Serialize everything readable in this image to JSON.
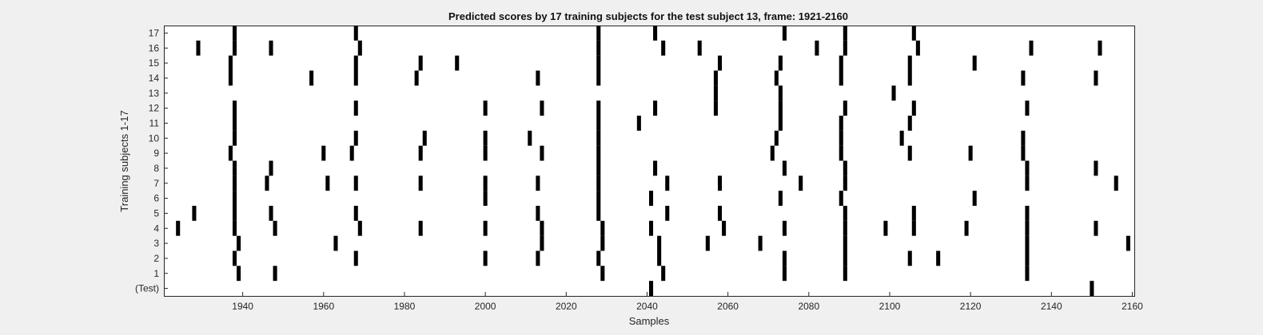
{
  "chart_data": {
    "type": "heatmap",
    "title": "Predicted scores by 17 training subjects for the test subject 13, frame: 1921-2160",
    "xlabel": "Samples",
    "ylabel": "Training subjects 1-17",
    "xlim": [
      1921,
      2160
    ],
    "xticks": [
      1940,
      1960,
      1980,
      2000,
      2020,
      2040,
      2060,
      2080,
      2100,
      2120,
      2140,
      2160
    ],
    "rows": [
      "(Test)",
      "1",
      "2",
      "3",
      "4",
      "5",
      "6",
      "7",
      "8",
      "9",
      "10",
      "11",
      "12",
      "13",
      "14",
      "15",
      "16",
      "17"
    ],
    "marks": {
      "(Test)": [
        2041,
        2150
      ],
      "1": [
        1939,
        1948,
        2029,
        2044,
        2074,
        2089,
        2134
      ],
      "2": [
        1938,
        1968,
        2000,
        2013,
        2028,
        2043,
        2074,
        2089,
        2105,
        2112,
        2134
      ],
      "3": [
        1939,
        1963,
        2014,
        2029,
        2043,
        2055,
        2068,
        2089,
        2134,
        2159
      ],
      "4": [
        1924,
        1938,
        1948,
        1969,
        1984,
        2000,
        2014,
        2029,
        2041,
        2059,
        2074,
        2089,
        2099,
        2106,
        2119,
        2134,
        2151
      ],
      "5": [
        1928,
        1938,
        1947,
        1968,
        2013,
        2028,
        2045,
        2058,
        2089,
        2106,
        2134
      ],
      "6": [
        1938,
        2000,
        2028,
        2041,
        2073,
        2088,
        2121
      ],
      "7": [
        1938,
        1946,
        1961,
        1968,
        1984,
        2000,
        2013,
        2028,
        2045,
        2058,
        2078,
        2089,
        2134,
        2156
      ],
      "8": [
        1938,
        1947,
        2028,
        2042,
        2074,
        2089,
        2134,
        2151
      ],
      "9": [
        1937,
        1960,
        1967,
        1984,
        2000,
        2014,
        2028,
        2071,
        2088,
        2105,
        2120,
        2133
      ],
      "10": [
        1938,
        1968,
        1985,
        2000,
        2011,
        2028,
        2072,
        2088,
        2103,
        2133
      ],
      "11": [
        1938,
        2028,
        2038,
        2073,
        2088,
        2105
      ],
      "12": [
        1938,
        1968,
        2000,
        2014,
        2028,
        2042,
        2057,
        2073,
        2089,
        2106,
        2134
      ],
      "13": [
        2057,
        2073,
        2101
      ],
      "14": [
        1937,
        1957,
        1968,
        1983,
        2013,
        2028,
        2057,
        2072,
        2088,
        2105,
        2133,
        2151
      ],
      "15": [
        1937,
        1968,
        1984,
        1993,
        2028,
        2058,
        2073,
        2088,
        2105,
        2121
      ],
      "16": [
        1929,
        1938,
        1947,
        1969,
        2028,
        2044,
        2053,
        2082,
        2089,
        2107,
        2135,
        2152
      ],
      "17": [
        1938,
        1968,
        2028,
        2042,
        2074,
        2089,
        2106
      ]
    }
  }
}
